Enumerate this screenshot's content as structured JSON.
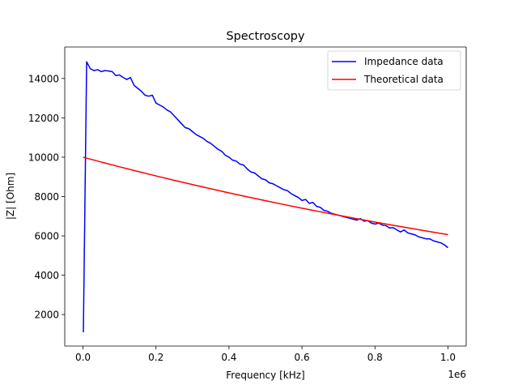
{
  "chart_data": {
    "type": "line",
    "title": "Spectroscopy",
    "xlabel": "Frequency [kHz]",
    "ylabel": "|Z| [Ohm]",
    "x_offset_label": "1e6",
    "x_scale_factor": 1000000,
    "xlim": [
      -50000,
      1050000
    ],
    "ylim": [
      400,
      15600
    ],
    "x_ticks": [
      0,
      200000,
      400000,
      600000,
      800000,
      1000000
    ],
    "x_tick_labels": [
      "0.0",
      "0.2",
      "0.4",
      "0.6",
      "0.8",
      "1.0"
    ],
    "y_ticks": [
      2000,
      4000,
      6000,
      8000,
      10000,
      12000,
      14000
    ],
    "y_tick_labels": [
      "2000",
      "4000",
      "6000",
      "8000",
      "10000",
      "12000",
      "14000"
    ],
    "grid": false,
    "legend_position": "top-right",
    "series": [
      {
        "name": "Impedance data",
        "color": "#0000ff",
        "x": [
          1000,
          10000,
          20000,
          30000,
          40000,
          50000,
          60000,
          70000,
          80000,
          90000,
          100000,
          110000,
          120000,
          130000,
          140000,
          150000,
          160000,
          170000,
          180000,
          190000,
          200000,
          210000,
          220000,
          230000,
          240000,
          250000,
          260000,
          270000,
          280000,
          290000,
          300000,
          310000,
          320000,
          330000,
          340000,
          350000,
          360000,
          370000,
          380000,
          390000,
          400000,
          410000,
          420000,
          430000,
          440000,
          450000,
          460000,
          470000,
          480000,
          490000,
          500000,
          510000,
          520000,
          530000,
          540000,
          550000,
          560000,
          570000,
          580000,
          590000,
          600000,
          610000,
          620000,
          630000,
          640000,
          650000,
          660000,
          670000,
          680000,
          690000,
          700000,
          710000,
          720000,
          730000,
          740000,
          750000,
          760000,
          770000,
          780000,
          790000,
          800000,
          810000,
          820000,
          830000,
          840000,
          850000,
          860000,
          870000,
          880000,
          890000,
          900000,
          910000,
          920000,
          930000,
          940000,
          950000,
          960000,
          970000,
          980000,
          990000,
          1000000
        ],
        "values": [
          1100,
          14850,
          14500,
          14400,
          14450,
          14350,
          14400,
          14380,
          14350,
          14150,
          14180,
          14050,
          13950,
          14050,
          13650,
          13500,
          13350,
          13150,
          13100,
          13150,
          12750,
          12650,
          12550,
          12400,
          12300,
          12100,
          11900,
          11700,
          11500,
          11450,
          11300,
          11150,
          11050,
          10950,
          10800,
          10700,
          10550,
          10400,
          10300,
          10100,
          10000,
          9850,
          9800,
          9650,
          9600,
          9400,
          9250,
          9200,
          9050,
          8900,
          8850,
          8700,
          8650,
          8550,
          8450,
          8350,
          8300,
          8150,
          8050,
          7950,
          7800,
          7850,
          7650,
          7700,
          7500,
          7450,
          7300,
          7250,
          7150,
          7100,
          7050,
          7000,
          6950,
          6900,
          6850,
          6800,
          6880,
          6750,
          6780,
          6650,
          6600,
          6650,
          6550,
          6520,
          6400,
          6420,
          6300,
          6200,
          6300,
          6150,
          6100,
          6050,
          5950,
          5900,
          5850,
          5850,
          5750,
          5700,
          5650,
          5550,
          5400
        ]
      },
      {
        "name": "Theoretical data",
        "color": "#ff0000",
        "x": [
          0,
          50000,
          100000,
          150000,
          200000,
          250000,
          300000,
          350000,
          400000,
          450000,
          500000,
          550000,
          600000,
          650000,
          700000,
          750000,
          800000,
          850000,
          900000,
          950000,
          1000000
        ],
        "values": [
          10000,
          9753,
          9512,
          9277,
          9048,
          8825,
          8607,
          8395,
          8187,
          7985,
          7788,
          7596,
          7408,
          7225,
          7047,
          6873,
          6703,
          6538,
          6376,
          6219,
          6065
        ]
      }
    ]
  }
}
